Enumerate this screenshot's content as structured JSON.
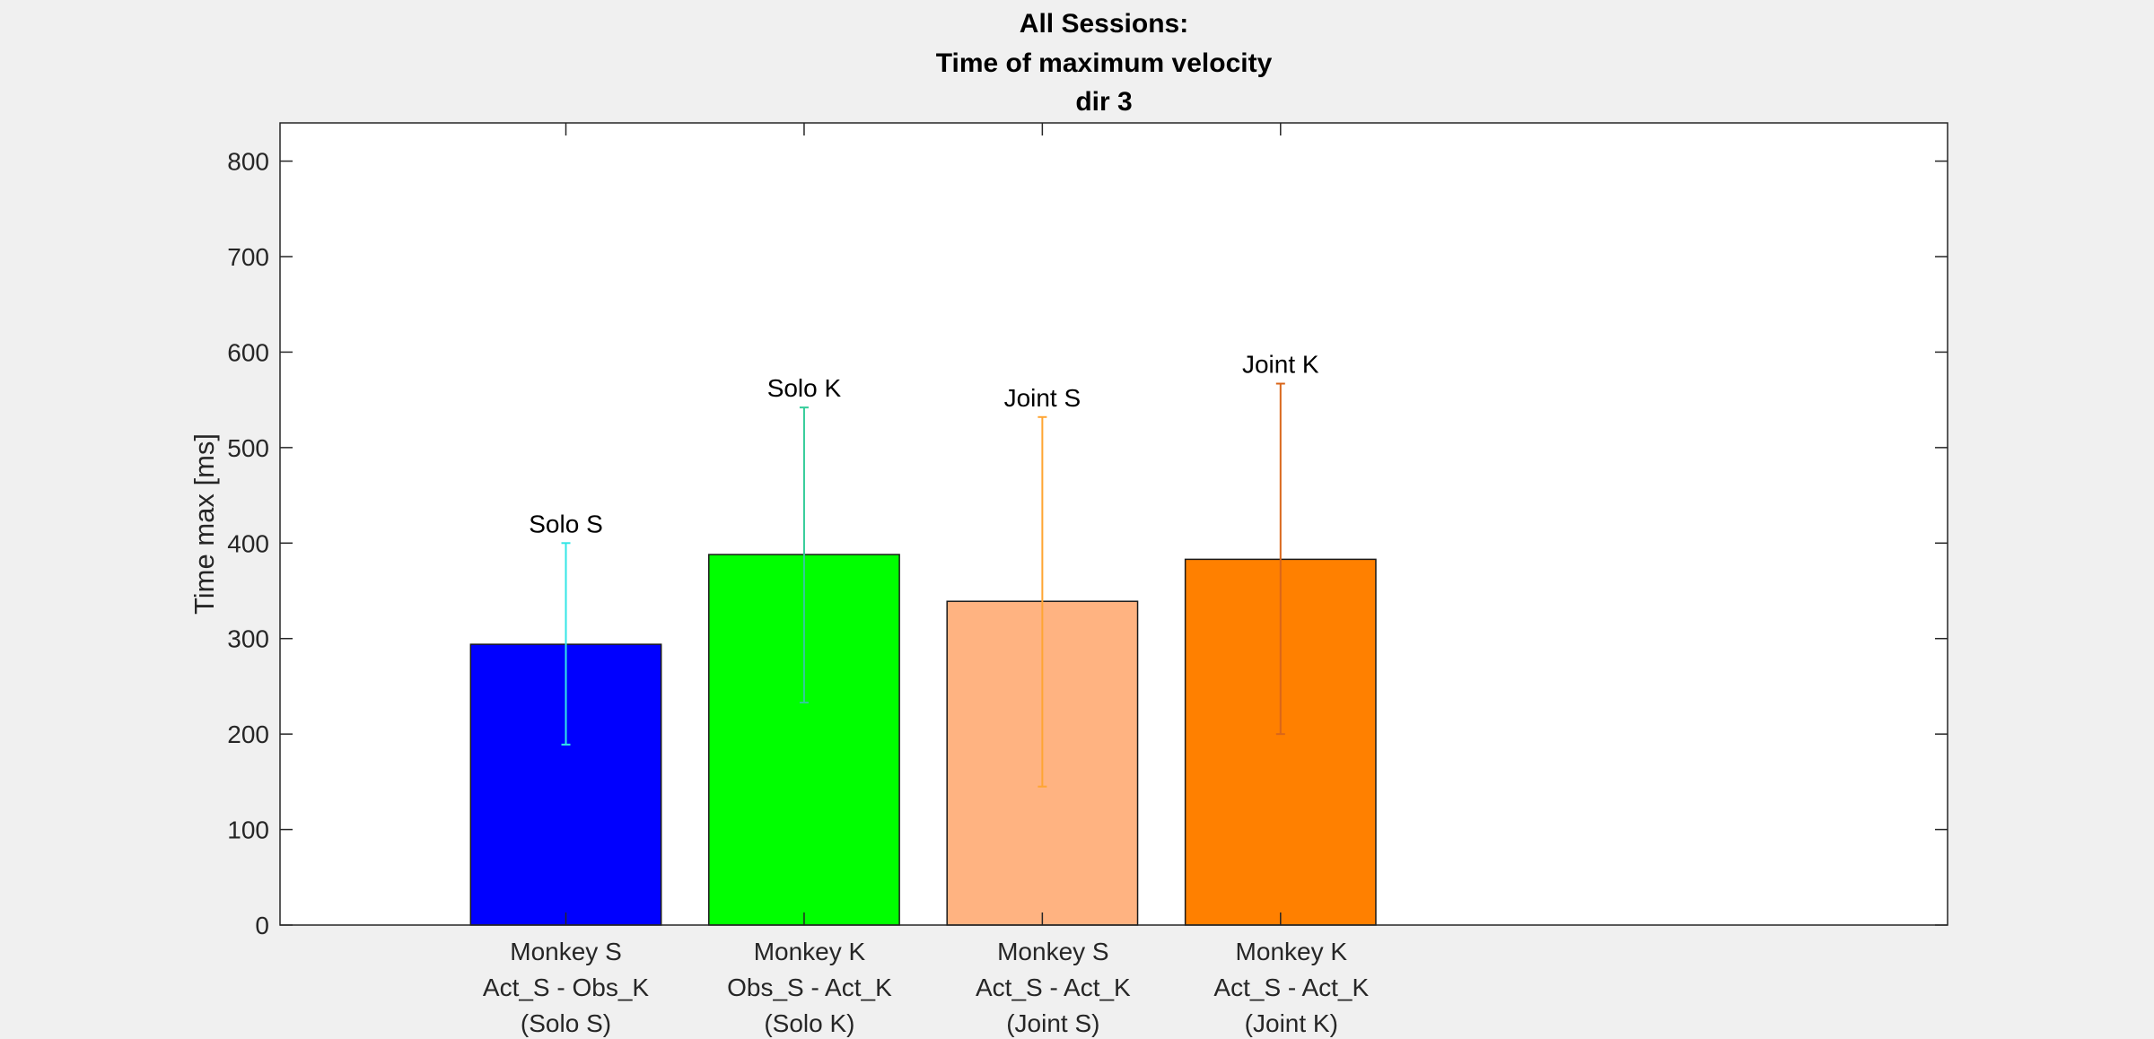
{
  "chart_data": {
    "type": "bar",
    "title_lines": [
      "All Sessions:",
      "Time of maximum velocity",
      "dir 3"
    ],
    "ylabel": "Time max [ms]",
    "ylim": [
      0,
      840
    ],
    "yticks": [
      0,
      100,
      200,
      300,
      400,
      500,
      600,
      700,
      800
    ],
    "xlim": [
      0,
      7
    ],
    "grid": false,
    "categories": [
      {
        "x": 1.2,
        "lines": [
          "Monkey S",
          "Act_S - Obs_K",
          "(Solo S)"
        ]
      },
      {
        "x": 2.2,
        "lines": [
          "Monkey K",
          "Obs_S - Act_K",
          "(Solo K)"
        ]
      },
      {
        "x": 3.2,
        "lines": [
          "Monkey S",
          "Act_S - Act_K",
          "(Joint S)"
        ]
      },
      {
        "x": 4.2,
        "lines": [
          "Monkey K",
          "Act_S - Act_K",
          "(Joint K)"
        ]
      }
    ],
    "bars": [
      {
        "x": 1.2,
        "value": 294,
        "err_low": 189,
        "err_high": 400,
        "label": "Solo S",
        "color": "#0000ff",
        "err_color": "#33e6e6"
      },
      {
        "x": 2.2,
        "value": 388,
        "err_low": 233,
        "err_high": 542,
        "label": "Solo K",
        "color": "#00ff00",
        "err_color": "#33cc99"
      },
      {
        "x": 3.2,
        "value": 339,
        "err_low": 145,
        "err_high": 532,
        "label": "Joint S",
        "color": "#ffb381",
        "err_color": "#ffa533"
      },
      {
        "x": 4.2,
        "value": 383,
        "err_low": 200,
        "err_high": 567,
        "label": "Joint K",
        "color": "#ff8000",
        "err_color": "#d9661a"
      }
    ],
    "bar_width": 0.8
  }
}
